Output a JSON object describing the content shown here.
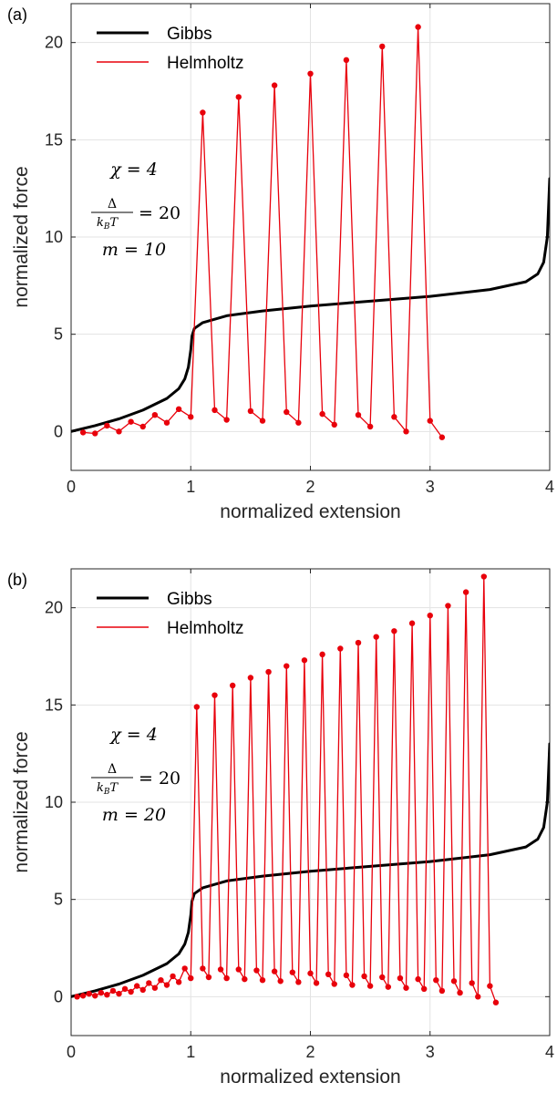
{
  "chart_data": [
    {
      "type": "line",
      "panel_label": "(a)",
      "xlabel": "normalized extension",
      "ylabel": "normalized force",
      "xlim": [
        0,
        4
      ],
      "ylim": [
        -2,
        22
      ],
      "xticks": [
        0,
        1,
        2,
        3,
        4
      ],
      "yticks": [
        0,
        5,
        10,
        15,
        20
      ],
      "grid": true,
      "legend": {
        "placement": "top-left",
        "entries": [
          "Gibbs",
          "Helmholtz"
        ]
      },
      "annotation": {
        "chi": "χ = 4",
        "delta_num": "Δ",
        "delta_den_k": "k",
        "delta_den_sub": "B",
        "delta_den_T": "T",
        "delta_eq": "= 20",
        "m": "m = 10"
      },
      "series": [
        {
          "name": "Gibbs",
          "color": "#000000",
          "x": [
            0,
            0.2,
            0.4,
            0.6,
            0.8,
            0.9,
            0.95,
            0.98,
            1.0,
            1.01,
            1.03,
            1.1,
            1.3,
            1.6,
            2.0,
            2.5,
            3.0,
            3.5,
            3.8,
            3.9,
            3.95,
            3.98,
            4.0
          ],
          "values": [
            0,
            0.3,
            0.65,
            1.1,
            1.7,
            2.2,
            2.7,
            3.3,
            4.2,
            4.9,
            5.3,
            5.6,
            5.95,
            6.2,
            6.45,
            6.7,
            6.95,
            7.3,
            7.7,
            8.1,
            8.7,
            10.0,
            13.0
          ]
        },
        {
          "name": "Helmholtz",
          "color": "#e8000b",
          "x": [
            0.1,
            0.2,
            0.3,
            0.4,
            0.5,
            0.6,
            0.7,
            0.8,
            0.9,
            1.0,
            1.1,
            1.2,
            1.3,
            1.4,
            1.5,
            1.6,
            1.7,
            1.8,
            1.9,
            2.0,
            2.1,
            2.2,
            2.3,
            2.4,
            2.5,
            2.6,
            2.7,
            2.8,
            2.9,
            3.0,
            3.1
          ],
          "values": [
            -0.05,
            -0.1,
            0.3,
            0.0,
            0.5,
            0.25,
            0.85,
            0.45,
            1.15,
            0.75,
            16.4,
            1.1,
            0.6,
            17.2,
            1.05,
            0.55,
            17.8,
            1.0,
            0.45,
            18.4,
            0.9,
            0.35,
            19.1,
            0.85,
            0.25,
            19.8,
            0.75,
            0.0,
            20.8,
            0.55,
            -0.3
          ]
        }
      ]
    },
    {
      "type": "line",
      "panel_label": "(b)",
      "xlabel": "normalized extension",
      "ylabel": "normalized force",
      "xlim": [
        0,
        4
      ],
      "ylim": [
        -2,
        22
      ],
      "xticks": [
        0,
        1,
        2,
        3,
        4
      ],
      "yticks": [
        0,
        5,
        10,
        15,
        20
      ],
      "grid": true,
      "legend": {
        "placement": "top-left",
        "entries": [
          "Gibbs",
          "Helmholtz"
        ]
      },
      "annotation": {
        "chi": "χ = 4",
        "delta_num": "Δ",
        "delta_den_k": "k",
        "delta_den_sub": "B",
        "delta_den_T": "T",
        "delta_eq": "= 20",
        "m": "m = 20"
      },
      "series": [
        {
          "name": "Gibbs",
          "color": "#000000",
          "x": [
            0,
            0.2,
            0.4,
            0.6,
            0.8,
            0.9,
            0.95,
            0.98,
            1.0,
            1.01,
            1.03,
            1.1,
            1.3,
            1.6,
            2.0,
            2.5,
            3.0,
            3.5,
            3.8,
            3.9,
            3.95,
            3.98,
            4.0
          ],
          "values": [
            0,
            0.3,
            0.65,
            1.1,
            1.7,
            2.2,
            2.7,
            3.3,
            4.2,
            4.9,
            5.3,
            5.6,
            5.95,
            6.2,
            6.45,
            6.7,
            6.95,
            7.3,
            7.7,
            8.1,
            8.7,
            10.0,
            13.0
          ]
        },
        {
          "name": "Helmholtz",
          "color": "#e8000b",
          "x": [
            0.05,
            0.1,
            0.15,
            0.2,
            0.25,
            0.3,
            0.35,
            0.4,
            0.45,
            0.5,
            0.55,
            0.6,
            0.65,
            0.7,
            0.75,
            0.8,
            0.85,
            0.9,
            0.95,
            1.0,
            1.05,
            1.1,
            1.15,
            1.2,
            1.25,
            1.3,
            1.35,
            1.4,
            1.45,
            1.5,
            1.55,
            1.6,
            1.65,
            1.7,
            1.75,
            1.8,
            1.85,
            1.9,
            1.95,
            2.0,
            2.05,
            2.1,
            2.15,
            2.2,
            2.25,
            2.3,
            2.35,
            2.4,
            2.45,
            2.5,
            2.55,
            2.6,
            2.65,
            2.7,
            2.75,
            2.8,
            2.85,
            2.9,
            2.95,
            3.0,
            3.05,
            3.1,
            3.15,
            3.2,
            3.25,
            3.3,
            3.35,
            3.4,
            3.45,
            3.5,
            3.55
          ],
          "values": [
            0.0,
            0.05,
            0.15,
            0.05,
            0.2,
            0.1,
            0.3,
            0.15,
            0.4,
            0.25,
            0.55,
            0.35,
            0.7,
            0.45,
            0.85,
            0.6,
            1.05,
            0.75,
            1.45,
            0.95,
            14.9,
            1.45,
            1.0,
            15.5,
            1.4,
            0.95,
            16.0,
            1.4,
            0.9,
            16.4,
            1.35,
            0.85,
            16.7,
            1.3,
            0.8,
            17.0,
            1.25,
            0.75,
            17.3,
            1.2,
            0.7,
            17.6,
            1.15,
            0.65,
            17.9,
            1.1,
            0.6,
            18.2,
            1.05,
            0.55,
            18.5,
            1.0,
            0.5,
            18.8,
            0.95,
            0.45,
            19.2,
            0.9,
            0.4,
            19.6,
            0.85,
            0.3,
            20.1,
            0.8,
            0.2,
            20.8,
            0.7,
            0.0,
            21.6,
            0.55,
            -0.3
          ]
        }
      ]
    }
  ]
}
